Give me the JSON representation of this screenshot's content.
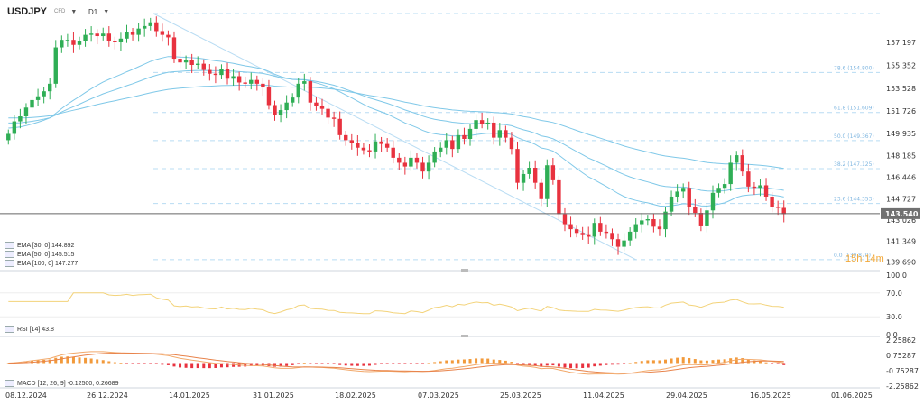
{
  "header": {
    "symbol": "USDJPY",
    "symbol_type": "CFD",
    "timeframe": "D1"
  },
  "price_axis": {
    "labels": [
      "157.197",
      "155.352",
      "153.528",
      "151.726",
      "149.935",
      "148.185",
      "146.446",
      "144.727",
      "143.026",
      "141.349",
      "139.690"
    ],
    "current_price": "143.540"
  },
  "fibonacci": [
    {
      "label": "78.6 (154.800)"
    },
    {
      "label": "61.8 (151.609)"
    },
    {
      "label": "50.0 (149.367)"
    },
    {
      "label": "38.2 (147.125)"
    },
    {
      "label": "23.6 (144.353)"
    },
    {
      "label": "0.0 (139.870)"
    }
  ],
  "indicators": {
    "ema": [
      {
        "label": "EMA [30, 0] 144.892"
      },
      {
        "label": "EMA [50, 0] 145.515"
      },
      {
        "label": "EMA [100, 0] 147.277"
      }
    ],
    "rsi": {
      "label": "RSI [14] 43.8",
      "axis": [
        "100.0",
        "70.0",
        "30.0",
        "0.0"
      ]
    },
    "macd": {
      "label": "MACD [12, 26, 9] -0.12500, 0.26689",
      "axis": [
        "2.25862",
        "0.75287",
        "-0.75287",
        "-2.25862"
      ]
    }
  },
  "countdown": "15h 14m",
  "x_axis": [
    "08.12.2024",
    "26.12.2024",
    "14.01.2025",
    "31.01.2025",
    "18.02.2025",
    "07.03.2025",
    "25.03.2025",
    "11.04.2025",
    "29.04.2025",
    "16.05.2025",
    "01.06.2025"
  ],
  "colors": {
    "bull": "#2fae55",
    "bear": "#e8323f",
    "ema": "#7fc8e8",
    "rsi": "#f3d37a",
    "macd_line": "#f2a96b",
    "macd_signal": "#e8834b",
    "macd_hist": "#f29a3b",
    "price_line": "#666666"
  },
  "chart_data": {
    "type": "candlestick",
    "closes": [
      149.9,
      150.9,
      151.3,
      152.0,
      152.6,
      152.9,
      153.3,
      153.9,
      156.8,
      157.4,
      157.4,
      157.0,
      157.3,
      157.8,
      157.9,
      157.7,
      157.9,
      157.3,
      157.2,
      157.5,
      158.0,
      157.8,
      158.3,
      158.5,
      158.8,
      158.1,
      157.8,
      157.6,
      155.9,
      155.6,
      155.8,
      155.4,
      155.5,
      155.0,
      154.7,
      154.6,
      155.1,
      154.3,
      154.5,
      154.0,
      153.9,
      154.2,
      153.9,
      153.6,
      152.2,
      151.4,
      151.8,
      152.4,
      152.8,
      153.9,
      154.1,
      152.4,
      152.1,
      151.9,
      151.2,
      151.1,
      149.8,
      149.4,
      149.2,
      148.8,
      148.6,
      148.5,
      149.3,
      149.1,
      148.8,
      148.0,
      147.6,
      147.3,
      148.0,
      147.6,
      146.9,
      147.6,
      148.5,
      148.8,
      149.4,
      148.7,
      149.8,
      149.5,
      150.3,
      151.0,
      150.7,
      150.8,
      149.6,
      150.2,
      149.6,
      148.7,
      146.0,
      146.7,
      147.2,
      146.0,
      144.7,
      147.4,
      146.2,
      143.5,
      142.7,
      142.3,
      142.0,
      141.9,
      141.7,
      142.8,
      142.1,
      142.0,
      141.5,
      140.9,
      141.4,
      142.1,
      142.7,
      143.0,
      143.1,
      142.5,
      142.3,
      143.7,
      144.9,
      145.3,
      145.6,
      144.1,
      143.6,
      142.6,
      143.8,
      145.2,
      145.6,
      145.9,
      147.6,
      148.2,
      146.9,
      145.7,
      145.6,
      145.8,
      144.9,
      144.1,
      144.0,
      143.5
    ],
    "ema": [
      {
        "name": "EMA 30",
        "final": 144.892
      },
      {
        "name": "EMA 50",
        "final": 145.515
      },
      {
        "name": "EMA 100",
        "final": 147.277
      }
    ],
    "ylim": [
      139.0,
      159.5
    ]
  }
}
